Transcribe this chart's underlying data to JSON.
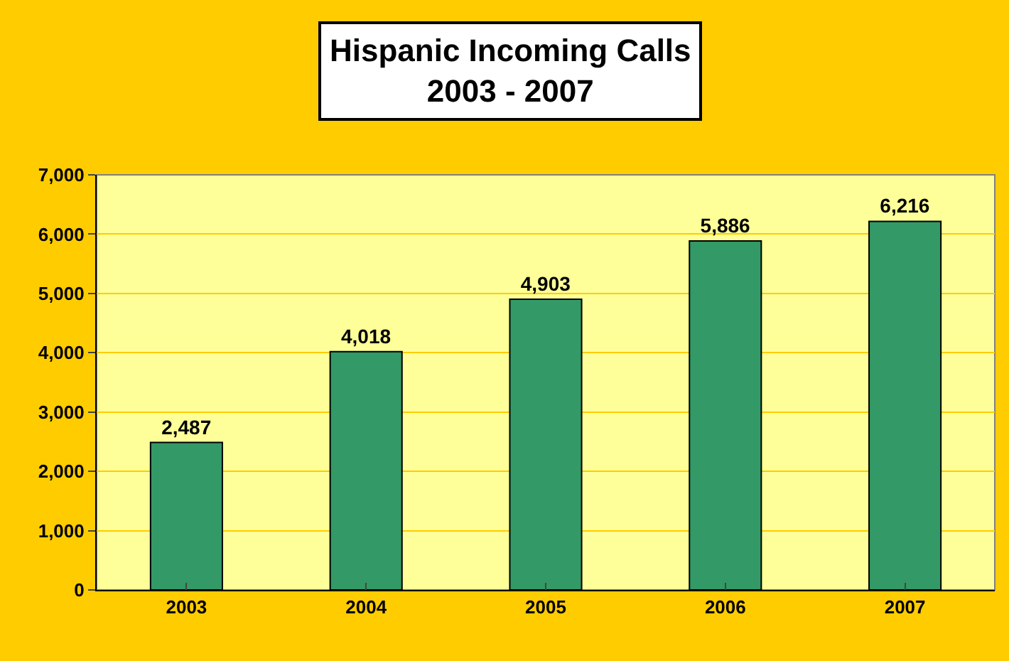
{
  "chart_data": {
    "type": "bar",
    "title": "Hispanic Incoming Calls\n2003 - 2007",
    "categories": [
      "2003",
      "2004",
      "2005",
      "2006",
      "2007"
    ],
    "values": [
      2487,
      4018,
      4903,
      5886,
      6216
    ],
    "color": "#339966",
    "ylim": [
      0,
      7000
    ],
    "yticks": [
      0,
      {
        "value": 1000,
        "label": "1,000"
      },
      {
        "value": 2000,
        "label": "2,000"
      },
      {
        "value": 3000,
        "label": "3,000"
      },
      {
        "value": 4000,
        "label": "4,000"
      },
      {
        "value": 5000,
        "label": "5,000"
      },
      {
        "value": 6000,
        "label": "6,000"
      },
      {
        "value": 7000,
        "label": "7,000"
      }
    ],
    "value_labels": [
      "2,487",
      "4,018",
      "4,903",
      "5,886",
      "6,216"
    ],
    "grid": "y",
    "legend": false
  }
}
